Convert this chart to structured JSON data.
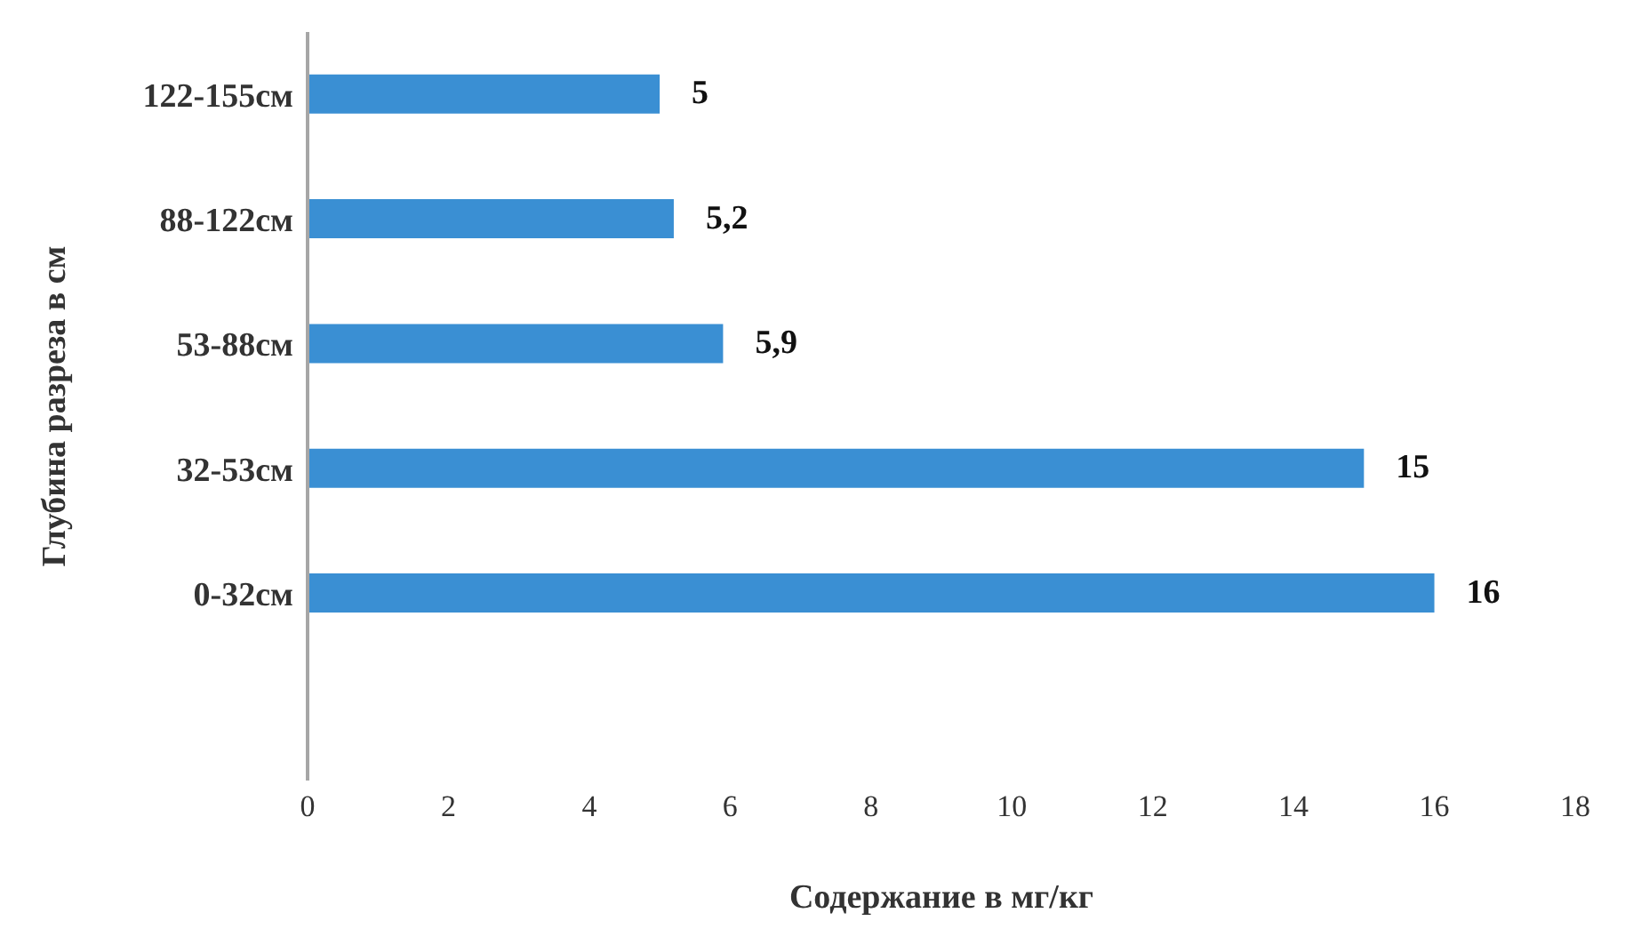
{
  "chart_data": {
    "type": "bar",
    "orientation": "horizontal",
    "xlabel": "Содержание в мг/кг",
    "ylabel": "Глубина разреза в см",
    "categories": [
      "122-155см",
      "88-122см",
      "53-88см",
      "32-53см",
      "0-32см",
      null
    ],
    "values": [
      5,
      5.2,
      5.9,
      15,
      16,
      null
    ],
    "value_labels": [
      "5",
      "5,2",
      "5,9",
      "15",
      "16",
      null
    ],
    "color": "#3a8fd3",
    "xlim": [
      0,
      18
    ],
    "xticks": [
      0,
      2,
      4,
      6,
      8,
      10,
      12,
      14,
      16,
      18
    ]
  }
}
